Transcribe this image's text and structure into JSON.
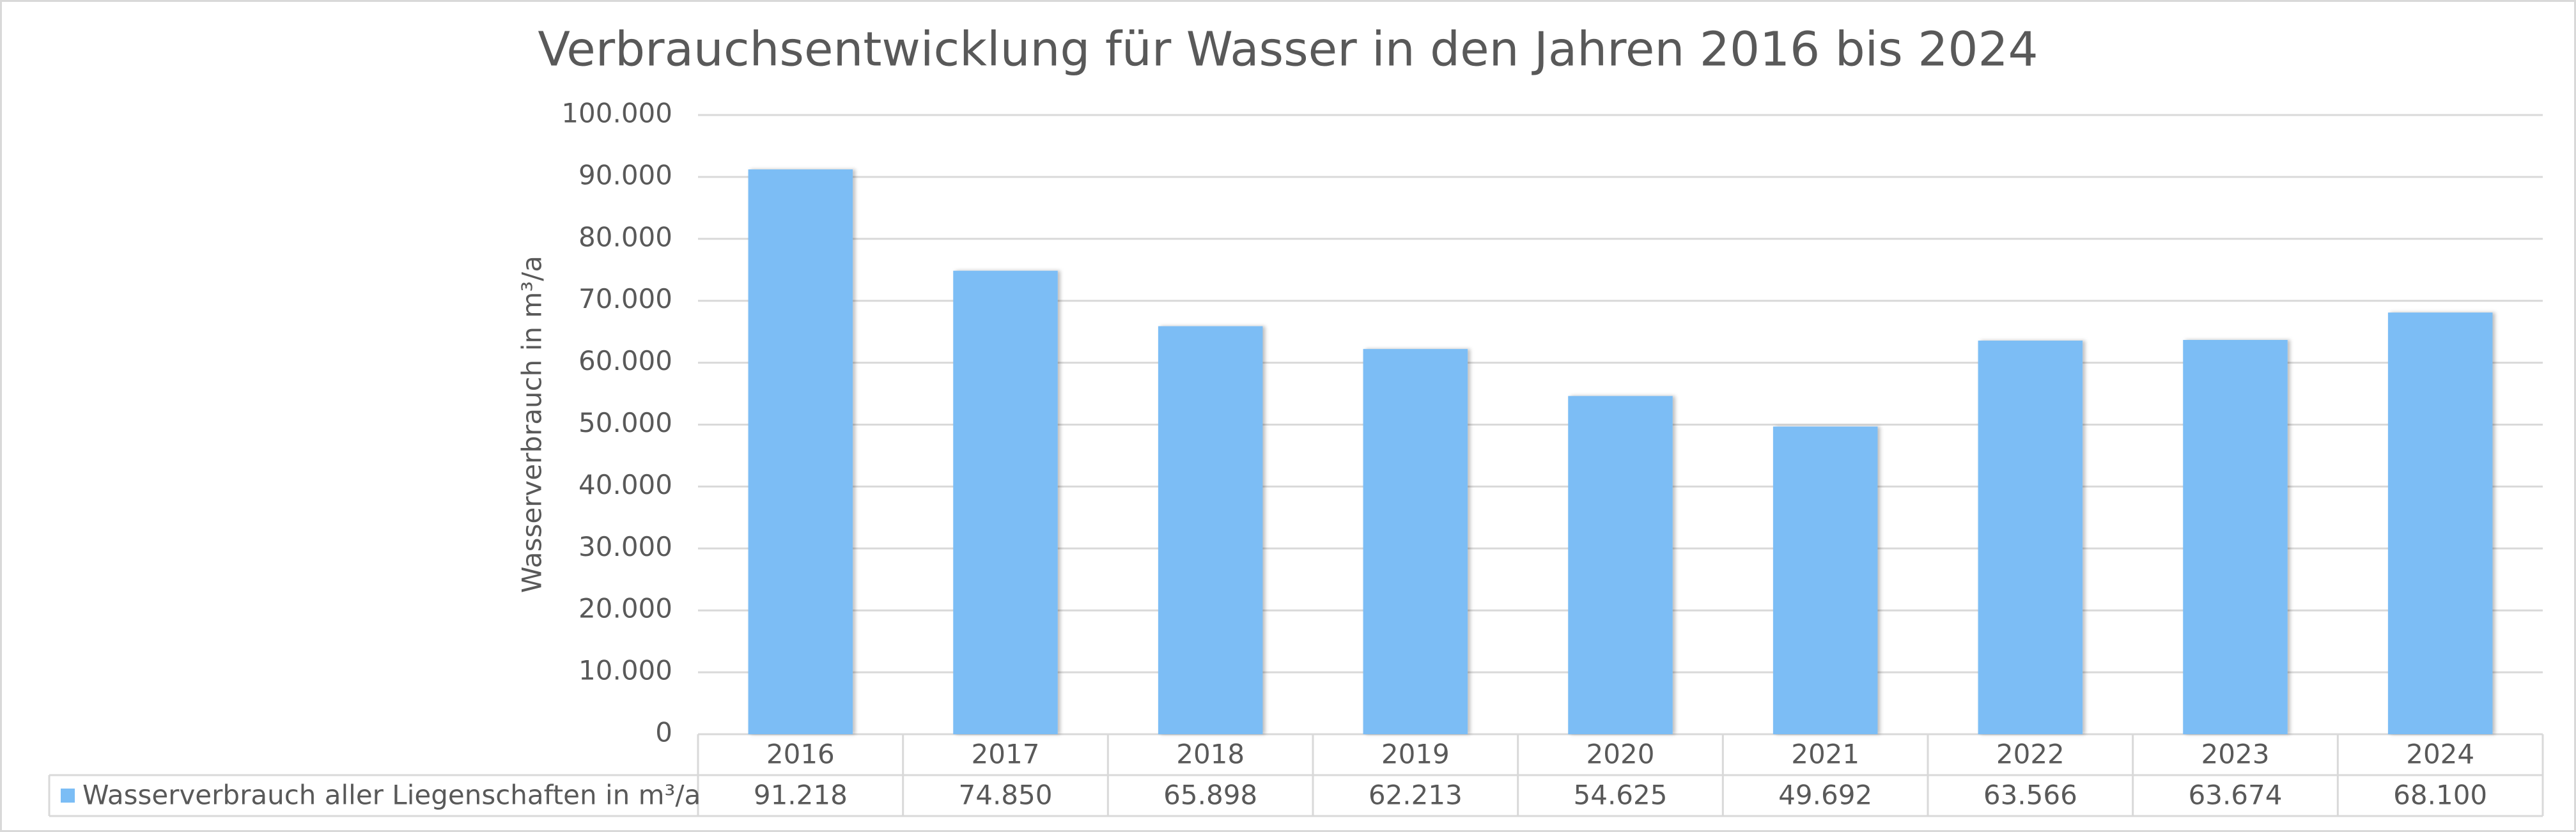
{
  "chart_data": {
    "type": "bar",
    "title": "Verbrauchsentwicklung für Wasser in den Jahren 2016 bis 2024",
    "y_label": "Wasserverbrauch in m³/a",
    "categories": [
      "2016",
      "2017",
      "2018",
      "2019",
      "2020",
      "2021",
      "2022",
      "2023",
      "2024"
    ],
    "series": [
      {
        "name": "Wasserverbrauch aller Liegenschaften in m³/a",
        "color": "#7bbdf5",
        "values": [
          91218,
          74850,
          65898,
          62213,
          54625,
          49692,
          63566,
          63674,
          68100
        ],
        "value_labels": [
          "91.218",
          "74.850",
          "65.898",
          "62.213",
          "54.625",
          "49.692",
          "63.566",
          "63.674",
          "68.100"
        ]
      }
    ],
    "ylim": [
      0,
      100000
    ],
    "yticks": [
      0,
      {
        "value": 10000,
        "label": "10.000"
      },
      {
        "value": 20000,
        "label": "20.000"
      },
      {
        "value": 30000,
        "label": "30.000"
      },
      {
        "value": 40000,
        "label": "40.000"
      },
      {
        "value": 50000,
        "label": "50.000"
      },
      {
        "value": 60000,
        "label": "60.000"
      },
      {
        "value": 70000,
        "label": "70.000"
      },
      {
        "value": 80000,
        "label": "80.000"
      },
      {
        "value": 90000,
        "label": "90.000"
      },
      {
        "value": 100000,
        "label": "100.000"
      }
    ],
    "grid": true
  }
}
